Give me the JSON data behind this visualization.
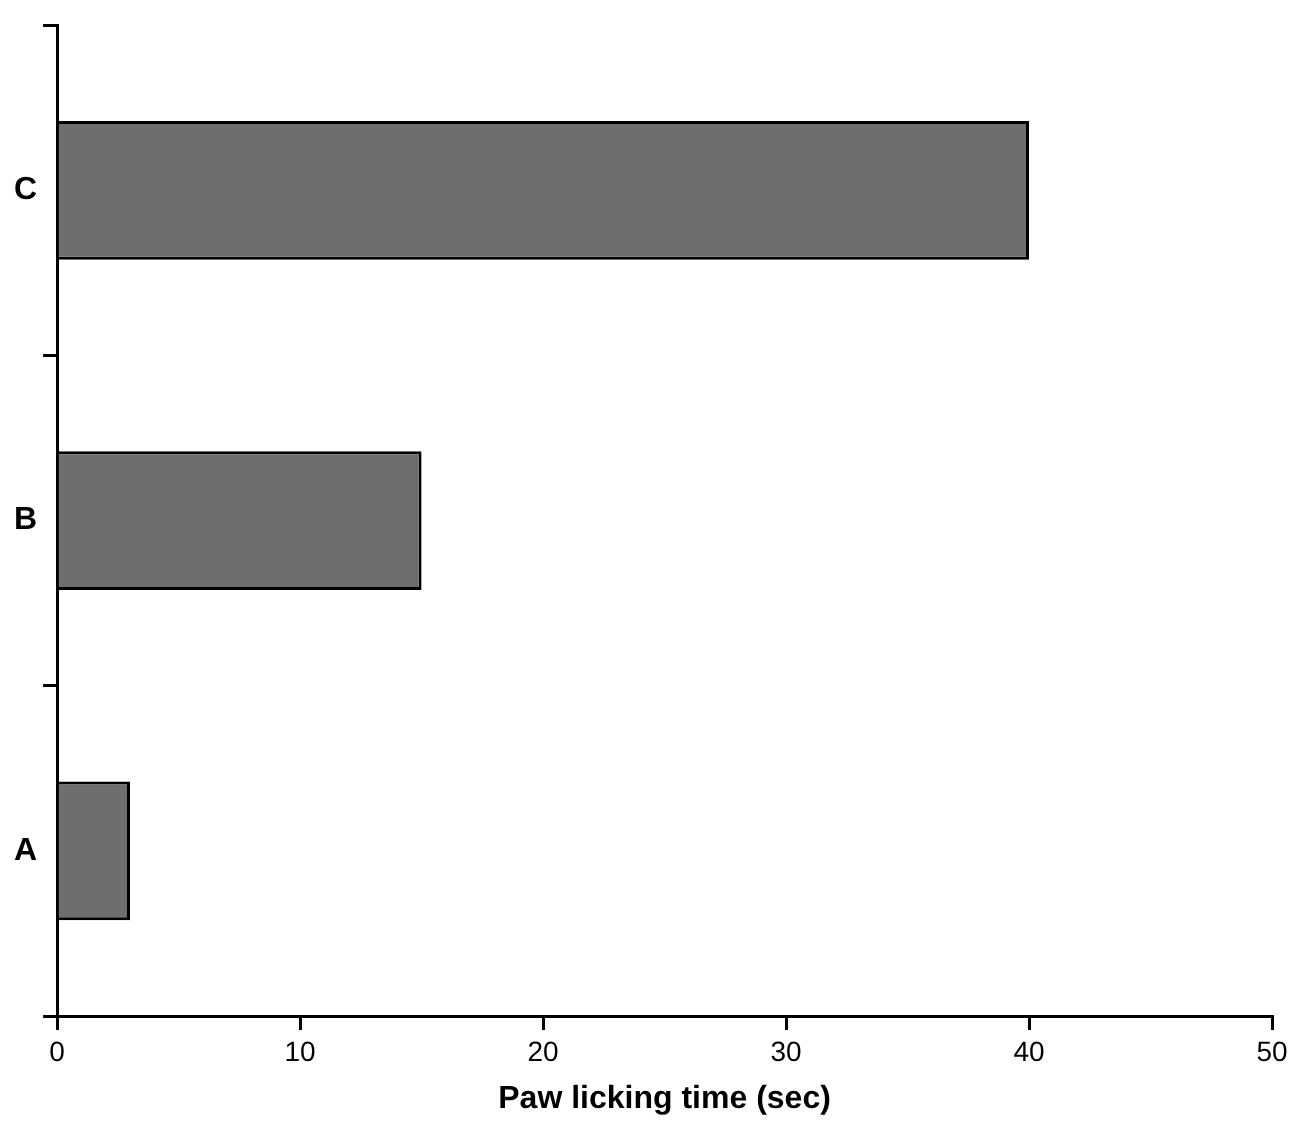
{
  "chart_data": {
    "type": "bar",
    "orientation": "horizontal",
    "xlabel": "Paw licking time (sec)",
    "categories": [
      "C",
      "B",
      "A"
    ],
    "values": [
      40,
      15,
      3
    ],
    "color": "#6e6e6e",
    "xlim": [
      0,
      50
    ],
    "xticks": [
      0,
      10,
      20,
      30,
      40,
      50
    ],
    "grid": false,
    "legend": false
  }
}
